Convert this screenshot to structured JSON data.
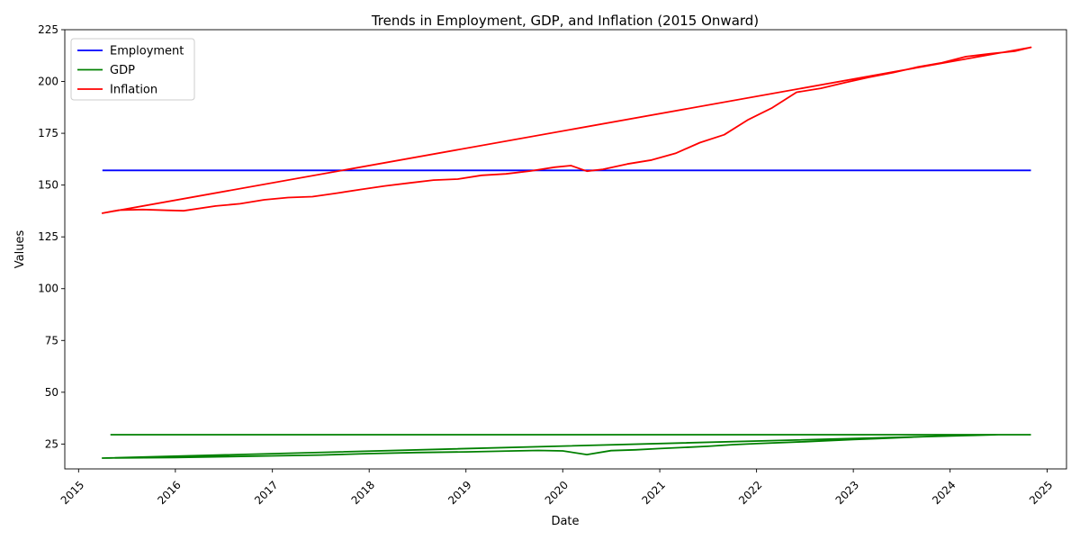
{
  "chart_data": {
    "type": "line",
    "title": "Trends in Employment, GDP, and Inflation (2015 Onward)",
    "xlabel": "Date",
    "ylabel": "Values",
    "xlim": [
      "2014-11-10",
      "2025-03-15"
    ],
    "ylim": [
      13,
      225
    ],
    "x_ticks": [
      {
        "date": "2015-01-01",
        "label": "2015"
      },
      {
        "date": "2016-01-01",
        "label": "2016"
      },
      {
        "date": "2017-01-01",
        "label": "2017"
      },
      {
        "date": "2018-01-01",
        "label": "2018"
      },
      {
        "date": "2019-01-01",
        "label": "2019"
      },
      {
        "date": "2020-01-01",
        "label": "2020"
      },
      {
        "date": "2021-01-01",
        "label": "2021"
      },
      {
        "date": "2022-01-01",
        "label": "2022"
      },
      {
        "date": "2023-01-01",
        "label": "2023"
      },
      {
        "date": "2024-01-01",
        "label": "2024"
      },
      {
        "date": "2025-01-01",
        "label": "2025"
      }
    ],
    "y_ticks": [
      25,
      50,
      75,
      100,
      125,
      150,
      175,
      200,
      225
    ],
    "grid": false,
    "legend": "top-left",
    "series": [
      {
        "name": "Employment",
        "color": "#0000ff",
        "points": [
          [
            "2015-04-01",
            157.1
          ],
          [
            "2024-11-01",
            157.1
          ]
        ]
      },
      {
        "name": "GDP",
        "color": "#008000",
        "points": [
          [
            "2015-05-01",
            29.5
          ],
          [
            "2024-07-01",
            29.5
          ],
          [
            "2015-04-01",
            18.2
          ],
          [
            "2016-01-01",
            18.5
          ],
          [
            "2017-01-01",
            19.3
          ],
          [
            "2017-07-01",
            19.7
          ],
          [
            "2018-01-01",
            20.4
          ],
          [
            "2018-07-01",
            20.9
          ],
          [
            "2019-01-01",
            21.2
          ],
          [
            "2019-07-01",
            21.7
          ],
          [
            "2019-10-01",
            21.9
          ],
          [
            "2020-01-01",
            21.7
          ],
          [
            "2020-04-01",
            19.9
          ],
          [
            "2020-07-01",
            21.8
          ],
          [
            "2020-10-01",
            22.2
          ],
          [
            "2021-01-01",
            22.8
          ],
          [
            "2021-07-01",
            23.9
          ],
          [
            "2021-10-01",
            24.7
          ],
          [
            "2022-01-01",
            25.2
          ],
          [
            "2022-07-01",
            26.1
          ],
          [
            "2023-01-01",
            27.2
          ],
          [
            "2023-04-01",
            27.6
          ],
          [
            "2023-07-01",
            28.1
          ],
          [
            "2023-10-01",
            28.6
          ],
          [
            "2024-01-01",
            28.9
          ],
          [
            "2024-04-01",
            29.2
          ],
          [
            "2024-07-01",
            29.5
          ],
          [
            "2024-11-01",
            29.5
          ]
        ]
      },
      {
        "name": "Inflation",
        "color": "#ff0000",
        "points": [
          [
            "2015-04-01",
            136.4
          ],
          [
            "2024-11-01",
            216.5
          ],
          [
            "2015-04-01",
            136.4
          ],
          [
            "2015-06-01",
            137.9
          ],
          [
            "2015-09-01",
            138.2
          ],
          [
            "2015-12-01",
            137.8
          ],
          [
            "2016-02-01",
            137.6
          ],
          [
            "2016-06-01",
            139.9
          ],
          [
            "2016-09-01",
            141.0
          ],
          [
            "2016-12-01",
            142.9
          ],
          [
            "2017-03-01",
            144.0
          ],
          [
            "2017-06-01",
            144.4
          ],
          [
            "2017-09-01",
            146.1
          ],
          [
            "2017-12-01",
            147.9
          ],
          [
            "2018-03-01",
            149.6
          ],
          [
            "2018-06-01",
            151.0
          ],
          [
            "2018-09-01",
            152.4
          ],
          [
            "2018-12-01",
            152.9
          ],
          [
            "2019-03-01",
            154.7
          ],
          [
            "2019-06-01",
            155.4
          ],
          [
            "2019-09-01",
            156.8
          ],
          [
            "2019-12-01",
            158.6
          ],
          [
            "2020-02-01",
            159.4
          ],
          [
            "2020-04-01",
            156.7
          ],
          [
            "2020-06-01",
            157.6
          ],
          [
            "2020-09-01",
            160.2
          ],
          [
            "2020-12-01",
            162.1
          ],
          [
            "2021-03-01",
            165.3
          ],
          [
            "2021-06-01",
            170.5
          ],
          [
            "2021-09-01",
            174.3
          ],
          [
            "2021-12-01",
            181.6
          ],
          [
            "2022-03-01",
            187.3
          ],
          [
            "2022-06-01",
            194.8
          ],
          [
            "2022-09-01",
            196.7
          ],
          [
            "2022-12-01",
            199.5
          ],
          [
            "2023-03-01",
            202.0
          ],
          [
            "2023-06-01",
            204.3
          ],
          [
            "2023-09-01",
            207.0
          ],
          [
            "2023-12-01",
            209.0
          ],
          [
            "2024-03-01",
            212.0
          ],
          [
            "2024-06-01",
            213.4
          ],
          [
            "2024-09-01",
            214.6
          ],
          [
            "2024-11-01",
            216.5
          ]
        ]
      }
    ]
  }
}
